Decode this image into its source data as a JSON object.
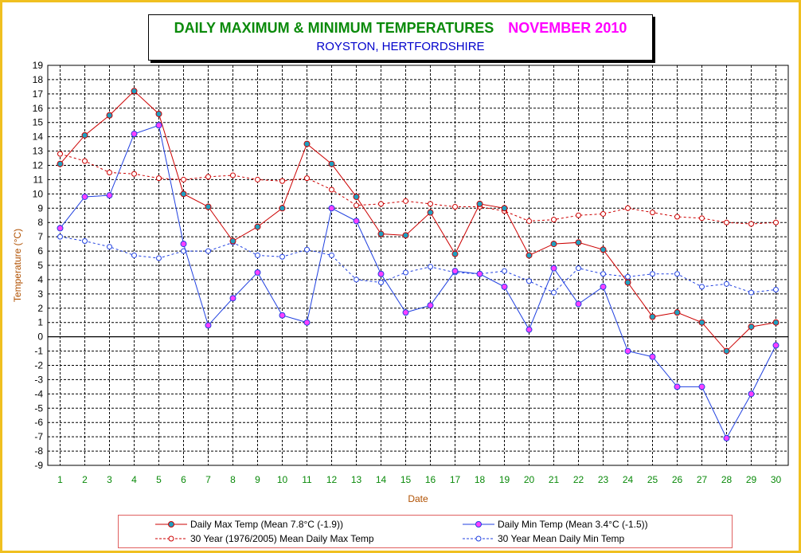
{
  "header": {
    "title": "DAILY MAXIMUM &  MINIMUM  TEMPERATURES",
    "month": "NOVEMBER 2010",
    "subtitle": "ROYSTON, HERTFORDSHIRE"
  },
  "colors": {
    "frame": "#f0c020",
    "title": "#0a8a0a",
    "month": "#ff00ff",
    "subtitle": "#0000cc",
    "max": "#cc0000",
    "min": "#2040e0",
    "tick_labels_x": "#0a8a0a",
    "axis_title": "#b05000"
  },
  "chart_data": {
    "type": "line",
    "xlabel": "Date",
    "ylabel": "Temperature (°C)",
    "ylim": [
      -9,
      19
    ],
    "xlim": [
      1,
      30
    ],
    "grid": true,
    "legend_position": "bottom",
    "x": [
      1,
      2,
      3,
      4,
      5,
      6,
      7,
      8,
      9,
      10,
      11,
      12,
      13,
      14,
      15,
      16,
      17,
      18,
      19,
      20,
      21,
      22,
      23,
      24,
      25,
      26,
      27,
      28,
      29,
      30
    ],
    "series": [
      {
        "name": "Daily Max Temp (Mean 7.8°C (-1.9))",
        "values": [
          12.1,
          14.1,
          15.5,
          17.2,
          15.6,
          10.0,
          9.1,
          6.7,
          7.7,
          9.0,
          13.5,
          12.1,
          9.8,
          7.2,
          7.1,
          8.7,
          5.8,
          9.3,
          9.0,
          5.7,
          6.5,
          6.6,
          6.1,
          3.8,
          1.4,
          1.7,
          1.0,
          -1.0,
          0.7,
          1.0
        ]
      },
      {
        "name": "Daily Min Temp (Mean 3.4°C (-1.5))",
        "values": [
          7.6,
          9.8,
          9.9,
          14.2,
          14.8,
          6.5,
          0.8,
          2.7,
          4.5,
          1.5,
          1.0,
          9.0,
          8.1,
          4.4,
          1.7,
          2.2,
          4.6,
          4.4,
          3.5,
          0.5,
          4.8,
          2.3,
          3.5,
          -1.0,
          -1.4,
          -3.5,
          -3.5,
          -7.1,
          -4.0,
          -0.6
        ]
      },
      {
        "name": "30 Year (1976/2005) Mean Daily Max Temp",
        "values": [
          12.8,
          12.3,
          11.5,
          11.4,
          11.1,
          11.0,
          11.2,
          11.3,
          11.0,
          10.9,
          11.1,
          10.3,
          9.2,
          9.3,
          9.5,
          9.3,
          9.1,
          9.1,
          8.8,
          8.1,
          8.2,
          8.5,
          8.6,
          9.0,
          8.7,
          8.4,
          8.3,
          8.0,
          7.9,
          8.0
        ]
      },
      {
        "name": "30 Year Mean Daily Min Temp",
        "values": [
          7.0,
          6.7,
          6.3,
          5.7,
          5.5,
          6.0,
          6.0,
          6.6,
          5.7,
          5.6,
          6.1,
          5.7,
          4.0,
          3.8,
          4.5,
          4.9,
          4.5,
          4.4,
          4.6,
          3.9,
          3.1,
          4.8,
          4.4,
          4.2,
          4.4,
          4.4,
          3.5,
          3.7,
          3.1,
          3.3
        ]
      }
    ],
    "legend": [
      "Daily Max Temp (Mean 7.8°C (-1.9))",
      "Daily Min Temp (Mean 3.4°C (-1.5))",
      "30 Year (1976/2005) Mean Daily Max Temp",
      "30 Year Mean Daily Min Temp"
    ]
  }
}
